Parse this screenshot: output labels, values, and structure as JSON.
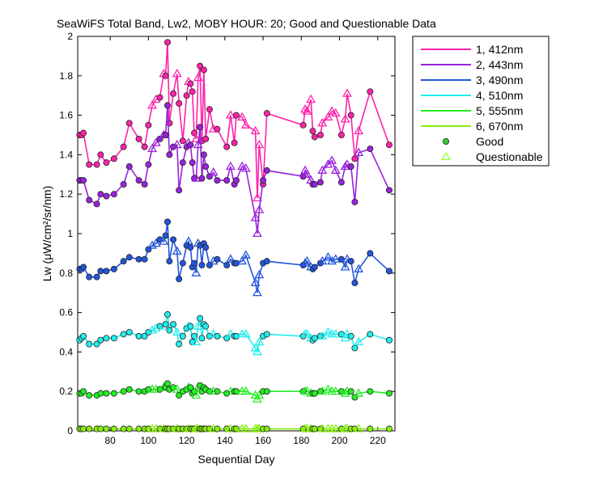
{
  "chart_data": {
    "type": "line",
    "title": "SeaWiFS Total Band,  Lw2, MOBY HOUR: 20;  Good and Questionable Data",
    "xlabel": "Sequential Day",
    "ylabel": "Lw (μW/cm²/sr/nm)",
    "xlim": [
      63,
      229
    ],
    "ylim": [
      0,
      2
    ],
    "xticks": [
      80,
      100,
      120,
      140,
      160,
      180,
      200,
      220
    ],
    "yticks": [
      0,
      0.2,
      0.4,
      0.6,
      0.8,
      1,
      1.2,
      1.4,
      1.6,
      1.8,
      2
    ],
    "legend_position": "outside-right",
    "marker_legend": [
      {
        "label": "Good",
        "marker": "circle",
        "color": "#33cc33"
      },
      {
        "label": "Questionable",
        "marker": "triangle",
        "color": "#99ff33"
      }
    ],
    "days": [
      64,
      65,
      66,
      69,
      73,
      75,
      78,
      82,
      87,
      90,
      95,
      98,
      100,
      102,
      104,
      106,
      108,
      109,
      110,
      111,
      113,
      115,
      116,
      118,
      120,
      121,
      122,
      123,
      124,
      125,
      126,
      127,
      128,
      129,
      130,
      132,
      134,
      136,
      141,
      143,
      145,
      146,
      149,
      151,
      156,
      157,
      158,
      160,
      162,
      181,
      182,
      183,
      185,
      186,
      187,
      190,
      191,
      194,
      196,
      198,
      201,
      203,
      204,
      206,
      208,
      210,
      216,
      226
    ],
    "questionable_days": [
      102,
      104,
      108,
      115,
      121,
      125,
      126,
      134,
      143,
      149,
      151,
      156,
      157,
      158,
      182,
      183,
      185,
      191,
      194,
      196,
      198,
      203,
      204,
      210
    ],
    "series": [
      {
        "name": "1, 412nm",
        "color": "#ff22aa",
        "values": [
          1.5,
          1.5,
          1.51,
          1.35,
          1.35,
          1.4,
          1.36,
          1.38,
          1.44,
          1.56,
          1.48,
          1.44,
          1.55,
          1.65,
          1.68,
          1.69,
          1.81,
          1.8,
          1.97,
          1.56,
          1.71,
          1.81,
          1.66,
          1.47,
          1.7,
          1.77,
          1.76,
          1.72,
          1.51,
          1.48,
          1.79,
          1.85,
          1.47,
          1.83,
          1.48,
          1.63,
          1.53,
          1.53,
          1.44,
          1.6,
          1.46,
          1.6,
          1.59,
          1.55,
          1.52,
          1.18,
          1.45,
          1.25,
          1.61,
          1.55,
          1.63,
          1.62,
          1.68,
          1.52,
          1.49,
          1.5,
          1.56,
          1.59,
          1.62,
          1.61,
          1.5,
          1.58,
          1.71,
          1.6,
          1.38,
          1.52,
          1.72,
          1.45
        ]
      },
      {
        "name": "2, 443nm",
        "color": "#9922dd",
        "values": [
          1.27,
          1.27,
          1.27,
          1.17,
          1.15,
          1.2,
          1.19,
          1.2,
          1.25,
          1.34,
          1.27,
          1.25,
          1.35,
          1.43,
          1.46,
          1.48,
          1.5,
          1.5,
          1.65,
          1.4,
          1.44,
          1.45,
          1.22,
          1.36,
          1.44,
          1.46,
          1.45,
          1.36,
          1.28,
          1.28,
          1.45,
          1.54,
          1.28,
          1.4,
          1.34,
          1.29,
          1.31,
          1.27,
          1.27,
          1.34,
          1.25,
          1.27,
          1.34,
          1.33,
          1.08,
          1.0,
          1.12,
          1.27,
          1.32,
          1.29,
          1.32,
          1.3,
          1.27,
          1.25,
          1.25,
          1.26,
          1.32,
          1.35,
          1.37,
          1.32,
          1.26,
          1.34,
          1.35,
          1.34,
          1.16,
          1.41,
          1.43,
          1.22
        ]
      },
      {
        "name": "3, 490nm",
        "color": "#2255dd",
        "values": [
          0.82,
          0.82,
          0.83,
          0.78,
          0.78,
          0.81,
          0.81,
          0.82,
          0.86,
          0.88,
          0.87,
          0.87,
          0.92,
          0.94,
          0.95,
          0.97,
          0.96,
          0.99,
          1.06,
          0.86,
          0.97,
          0.91,
          0.77,
          0.85,
          0.94,
          0.96,
          0.93,
          0.83,
          0.85,
          0.8,
          0.95,
          0.94,
          0.84,
          0.95,
          0.93,
          0.84,
          0.86,
          0.87,
          0.84,
          0.87,
          0.85,
          0.85,
          0.86,
          0.89,
          0.75,
          0.7,
          0.79,
          0.85,
          0.86,
          0.84,
          0.85,
          0.86,
          0.83,
          0.82,
          0.83,
          0.85,
          0.86,
          0.88,
          0.86,
          0.87,
          0.87,
          0.83,
          0.87,
          0.86,
          0.75,
          0.82,
          0.9,
          0.81
        ]
      },
      {
        "name": "4, 510nm",
        "color": "#22eeee",
        "values": [
          0.46,
          0.47,
          0.48,
          0.44,
          0.44,
          0.46,
          0.47,
          0.47,
          0.49,
          0.5,
          0.48,
          0.48,
          0.5,
          0.51,
          0.52,
          0.53,
          0.53,
          0.54,
          0.59,
          0.51,
          0.54,
          0.5,
          0.44,
          0.48,
          0.52,
          0.53,
          0.53,
          0.45,
          0.48,
          0.45,
          0.53,
          0.57,
          0.47,
          0.54,
          0.53,
          0.48,
          0.49,
          0.48,
          0.47,
          0.49,
          0.48,
          0.48,
          0.49,
          0.49,
          0.42,
          0.4,
          0.45,
          0.48,
          0.49,
          0.48,
          0.49,
          0.49,
          0.47,
          0.46,
          0.47,
          0.48,
          0.48,
          0.5,
          0.49,
          0.49,
          0.49,
          0.47,
          0.49,
          0.48,
          0.42,
          0.45,
          0.49,
          0.46
        ]
      },
      {
        "name": "5, 555nm",
        "color": "#22ee22",
        "values": [
          0.19,
          0.19,
          0.2,
          0.18,
          0.18,
          0.19,
          0.19,
          0.19,
          0.2,
          0.21,
          0.2,
          0.2,
          0.21,
          0.21,
          0.21,
          0.21,
          0.22,
          0.22,
          0.24,
          0.21,
          0.22,
          0.21,
          0.18,
          0.2,
          0.21,
          0.22,
          0.22,
          0.19,
          0.2,
          0.18,
          0.22,
          0.23,
          0.2,
          0.22,
          0.21,
          0.2,
          0.2,
          0.2,
          0.19,
          0.2,
          0.2,
          0.2,
          0.2,
          0.2,
          0.18,
          0.16,
          0.18,
          0.2,
          0.2,
          0.2,
          0.2,
          0.2,
          0.19,
          0.19,
          0.19,
          0.2,
          0.2,
          0.21,
          0.2,
          0.2,
          0.2,
          0.19,
          0.2,
          0.2,
          0.17,
          0.19,
          0.2,
          0.19
        ]
      },
      {
        "name": "6, 670nm",
        "color": "#88ee11",
        "values": [
          0.01,
          0.01,
          0.01,
          0.01,
          0.01,
          0.01,
          0.01,
          0.01,
          0.01,
          0.01,
          0.01,
          0.01,
          0.01,
          0.01,
          0.01,
          0.01,
          0.01,
          0.01,
          0.01,
          0.01,
          0.01,
          0.01,
          0.01,
          0.01,
          0.01,
          0.01,
          0.01,
          0.01,
          0.01,
          0.01,
          0.01,
          0.01,
          0.01,
          0.01,
          0.01,
          0.01,
          0.01,
          0.01,
          0.01,
          0.01,
          0.01,
          0.01,
          0.01,
          0.01,
          0.01,
          0.01,
          0.01,
          0.01,
          0.01,
          0.01,
          0.01,
          0.01,
          0.01,
          0.01,
          0.01,
          0.01,
          0.01,
          0.01,
          0.01,
          0.01,
          0.01,
          0.01,
          0.01,
          0.01,
          0.01,
          0.01,
          0.01,
          0.01
        ]
      }
    ]
  }
}
